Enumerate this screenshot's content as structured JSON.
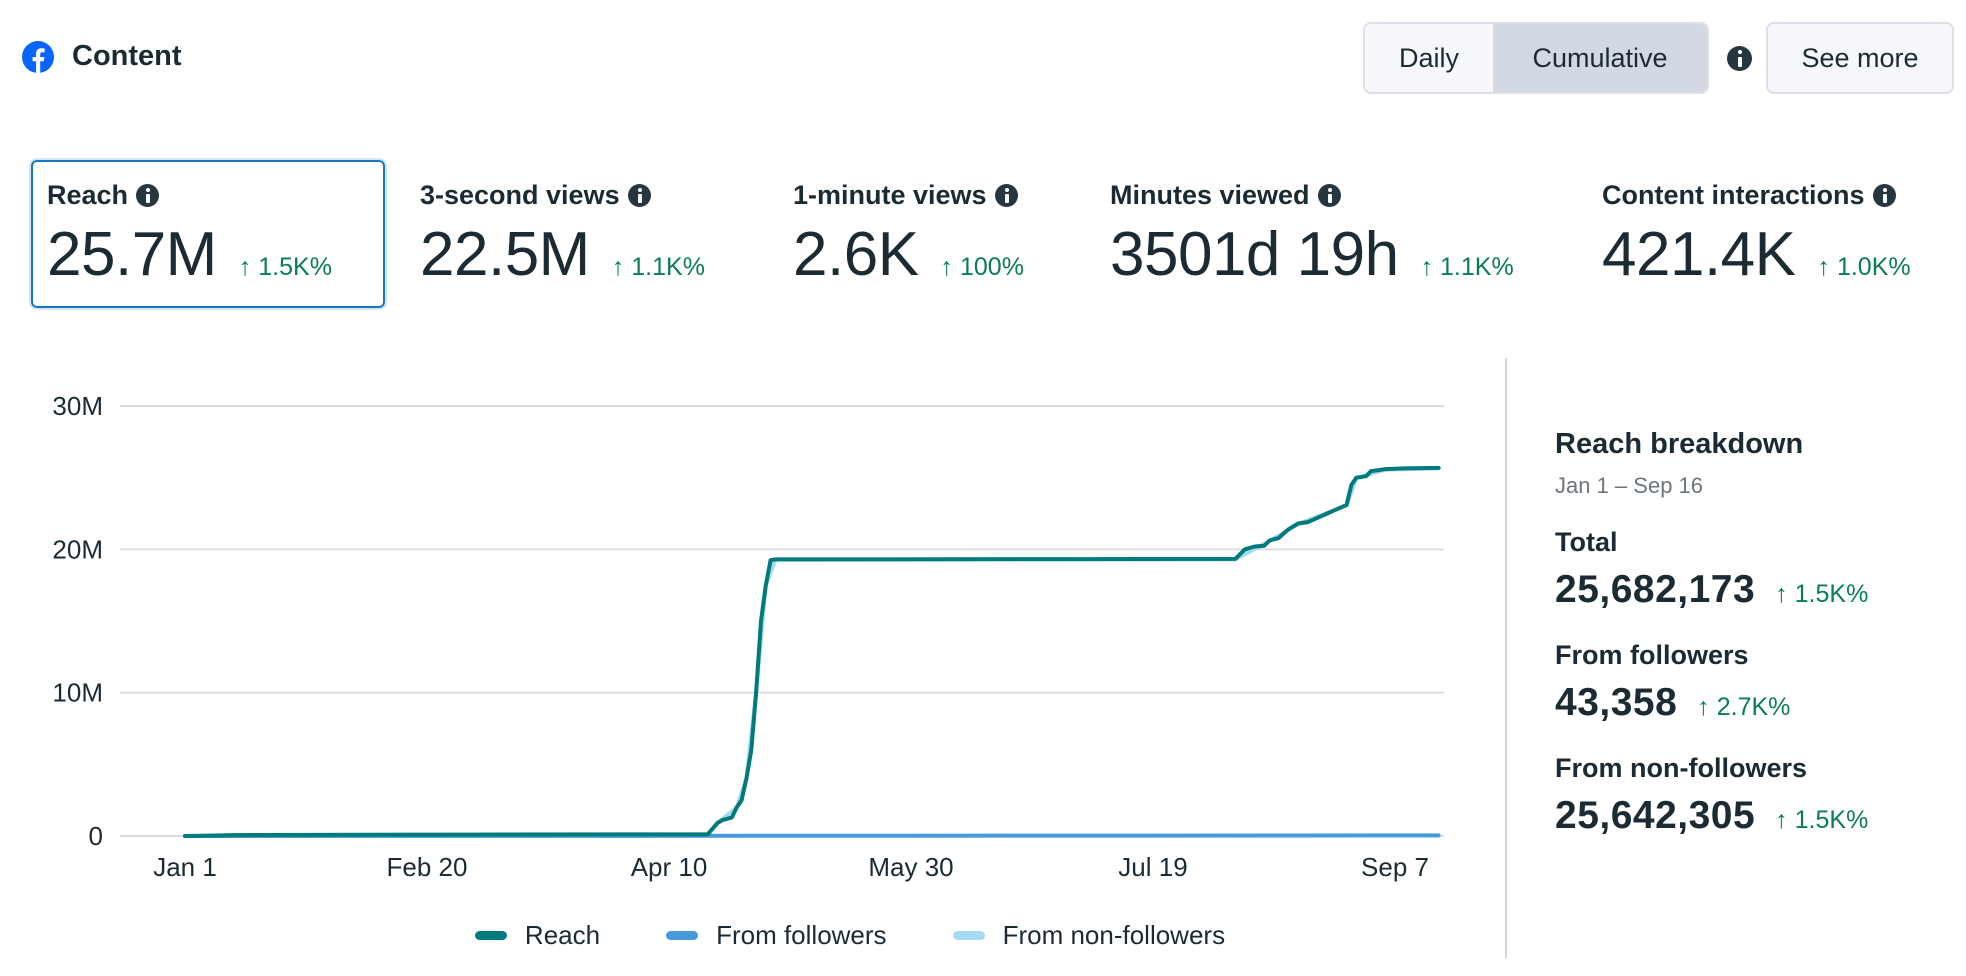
{
  "header": {
    "icon": "facebook-icon",
    "title": "Content"
  },
  "controls": {
    "daily_label": "Daily",
    "cumulative_label": "Cumulative",
    "selected": "Cumulative",
    "info_icon": "info-icon",
    "see_more_label": "See more"
  },
  "metrics": [
    {
      "label": "Reach",
      "value": "25.7M",
      "delta": "↑ 1.5K%",
      "selected": true
    },
    {
      "label": "3-second views",
      "value": "22.5M",
      "delta": "↑ 1.1K%",
      "selected": false
    },
    {
      "label": "1-minute views",
      "value": "2.6K",
      "delta": "↑ 100%",
      "selected": false
    },
    {
      "label": "Minutes viewed",
      "value": "3501d 19h",
      "delta": "↑ 1.1K%",
      "selected": false
    },
    {
      "label": "Content interactions",
      "value": "421.4K",
      "delta": "↑ 1.0K%",
      "selected": false
    }
  ],
  "breakdown": {
    "title": "Reach breakdown",
    "date_range": "Jan 1 – Sep 16",
    "items": [
      {
        "label": "Total",
        "value": "25,682,173",
        "delta": "↑ 1.5K%"
      },
      {
        "label": "From followers",
        "value": "43,358",
        "delta": "↑ 2.7K%"
      },
      {
        "label": "From non-followers",
        "value": "25,642,305",
        "delta": "↑ 1.5K%"
      }
    ]
  },
  "colors": {
    "reach": "#007a7a",
    "from_followers": "#4599dc",
    "from_non_followers": "#a5d9f5",
    "positive": "#0a7e52",
    "accent": "#1877c5"
  },
  "chart_data": {
    "type": "line",
    "title": "",
    "xlabel": "",
    "ylabel": "",
    "ylim": [
      0,
      30000000
    ],
    "yticks": [
      0,
      10000000,
      20000000,
      30000000
    ],
    "ytick_labels": [
      "0",
      "10M",
      "20M",
      "30M"
    ],
    "xticks_day": [
      0,
      50,
      100,
      150,
      200,
      250
    ],
    "xtick_labels": [
      "Jan 1",
      "Feb 20",
      "Apr 10",
      "May 30",
      "Jul 19",
      "Sep 7"
    ],
    "x_range_days": [
      0,
      259
    ],
    "x_unit": "days since Jan 1",
    "grid": true,
    "legend_position": "bottom",
    "series": [
      {
        "name": "Reach",
        "color": "#007a7a",
        "points": [
          [
            0,
            0
          ],
          [
            4,
            20000
          ],
          [
            10,
            60000
          ],
          [
            30,
            80000
          ],
          [
            60,
            100000
          ],
          [
            90,
            110000
          ],
          [
            108,
            120000
          ],
          [
            110,
            900000
          ],
          [
            111,
            1100000
          ],
          [
            113,
            1300000
          ],
          [
            114,
            2000000
          ],
          [
            115,
            2500000
          ],
          [
            116,
            4000000
          ],
          [
            117,
            6000000
          ],
          [
            118,
            10000000
          ],
          [
            119,
            15000000
          ],
          [
            120,
            17500000
          ],
          [
            121,
            19250000
          ],
          [
            122,
            19300000
          ],
          [
            140,
            19300000
          ],
          [
            180,
            19320000
          ],
          [
            217,
            19330000
          ],
          [
            219,
            20000000
          ],
          [
            221,
            20200000
          ],
          [
            223,
            20250000
          ],
          [
            224,
            20600000
          ],
          [
            226,
            20800000
          ],
          [
            228,
            21400000
          ],
          [
            230,
            21800000
          ],
          [
            232,
            21900000
          ],
          [
            234,
            22200000
          ],
          [
            236,
            22500000
          ],
          [
            238,
            22800000
          ],
          [
            240,
            23100000
          ],
          [
            241,
            24500000
          ],
          [
            242,
            25000000
          ],
          [
            244,
            25100000
          ],
          [
            245,
            25450000
          ],
          [
            248,
            25600000
          ],
          [
            252,
            25650000
          ],
          [
            259,
            25682173
          ]
        ]
      },
      {
        "name": "From followers",
        "color": "#4599dc",
        "points": [
          [
            0,
            0
          ],
          [
            4,
            1500
          ],
          [
            60,
            5000
          ],
          [
            120,
            15000
          ],
          [
            180,
            25000
          ],
          [
            230,
            38000
          ],
          [
            259,
            43358
          ]
        ]
      },
      {
        "name": "From non-followers",
        "color": "#a5d9f5",
        "points": [
          [
            0,
            0
          ],
          [
            4,
            18500
          ],
          [
            10,
            58000
          ],
          [
            30,
            77000
          ],
          [
            60,
            95000
          ],
          [
            90,
            103000
          ],
          [
            108,
            110000
          ],
          [
            110,
            890000
          ],
          [
            114,
            1990000
          ],
          [
            116,
            3990000
          ],
          [
            118,
            9990000
          ],
          [
            120,
            17490000
          ],
          [
            122,
            19285000
          ],
          [
            217,
            19300000
          ],
          [
            224,
            20570000
          ],
          [
            230,
            21765000
          ],
          [
            240,
            23065000
          ],
          [
            242,
            24965000
          ],
          [
            248,
            25560000
          ],
          [
            259,
            25642305
          ]
        ]
      }
    ]
  }
}
